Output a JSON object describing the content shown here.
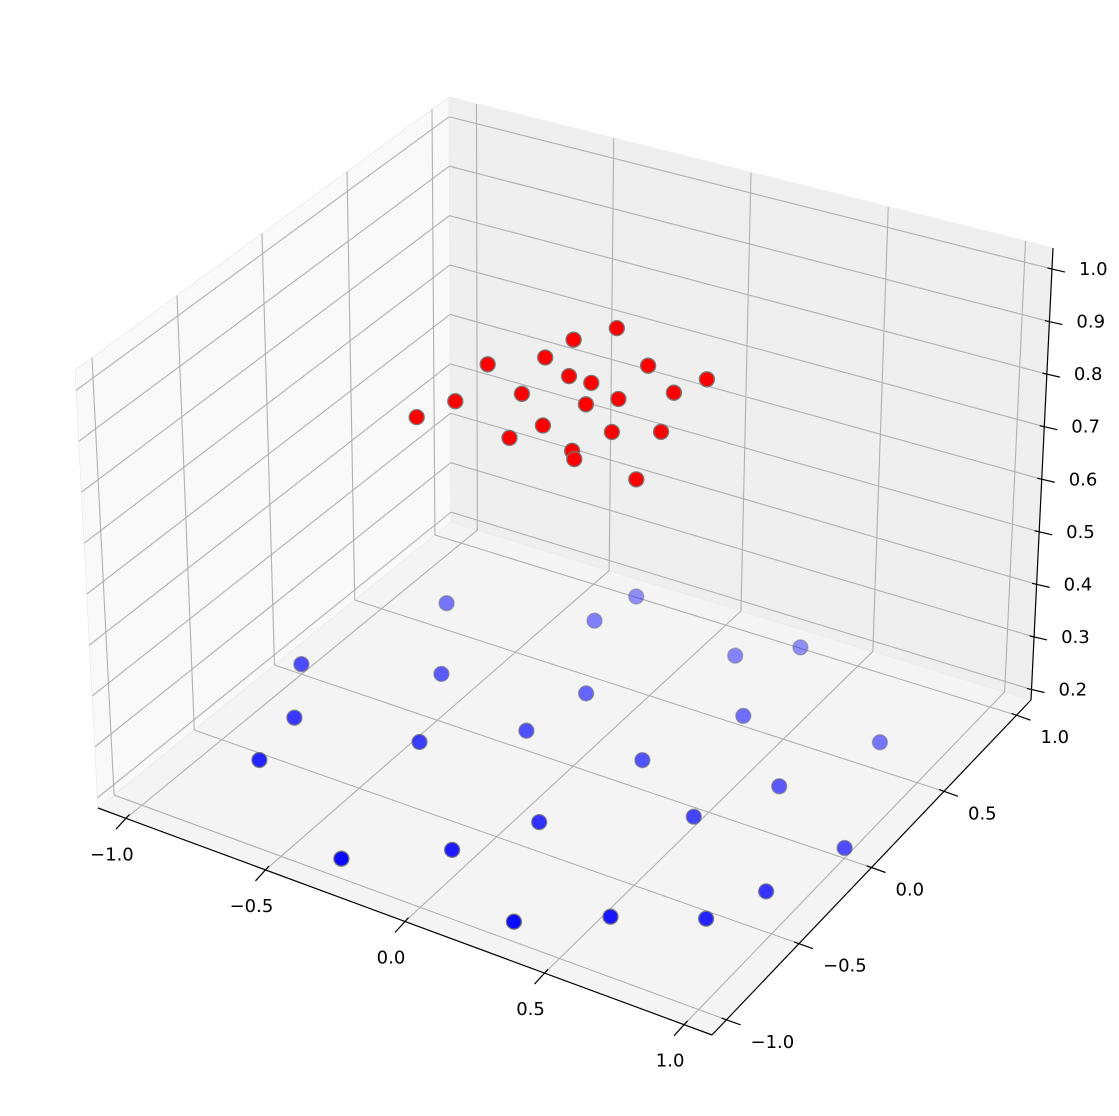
{
  "chart_data": {
    "type": "scatter3d",
    "title": "",
    "xlabel": "",
    "ylabel": "",
    "zlabel": "",
    "grid": true,
    "xlim": [
      -1.1,
      1.1
    ],
    "ylim": [
      -1.1,
      1.1
    ],
    "zlim": [
      0.18,
      1.04
    ],
    "xticks": [
      -1.0,
      -0.5,
      0.0,
      0.5,
      1.0
    ],
    "xtick_labels": [
      "−1.0",
      "−0.5",
      "0.0",
      "0.5",
      "1.0"
    ],
    "yticks": [
      -1.0,
      -0.5,
      0.0,
      0.5,
      1.0
    ],
    "ytick_labels": [
      "−1.0",
      "−0.5",
      "0.0",
      "0.5",
      "1.0"
    ],
    "zticks": [
      0.2,
      0.3,
      0.4,
      0.5,
      0.6,
      0.7,
      0.8,
      0.9,
      1.0
    ],
    "ztick_labels": [
      "0.2",
      "0.3",
      "0.4",
      "0.5",
      "0.6",
      "0.7",
      "0.8",
      "0.9",
      "1.0"
    ],
    "series": [
      {
        "color": "#0000ff",
        "points": [
          [
            1.0,
            0.0,
            0.2
          ],
          [
            0.81,
            0.59,
            0.2
          ],
          [
            0.31,
            0.95,
            0.2
          ],
          [
            -0.31,
            0.95,
            0.2
          ],
          [
            -0.81,
            0.59,
            0.2
          ],
          [
            -1.0,
            0.0,
            0.2
          ],
          [
            -0.81,
            -0.59,
            0.2
          ],
          [
            -0.31,
            -0.95,
            0.2
          ],
          [
            0.31,
            -0.95,
            0.2
          ],
          [
            0.81,
            -0.59,
            0.2
          ],
          [
            0.2,
            0.1,
            0.2
          ],
          [
            -0.15,
            0.35,
            0.2
          ],
          [
            0.1,
            -0.4,
            0.2
          ],
          [
            0.5,
            -0.1,
            0.2
          ],
          [
            -0.45,
            -0.2,
            0.2
          ],
          [
            -0.2,
            0.05,
            0.2
          ],
          [
            0.35,
            0.5,
            0.2
          ],
          [
            -0.6,
            0.2,
            0.2
          ],
          [
            0.65,
            0.2,
            0.2
          ],
          [
            -0.05,
            -0.7,
            0.2
          ],
          [
            0.15,
            0.8,
            0.2
          ],
          [
            -0.85,
            -0.3,
            0.2
          ],
          [
            0.9,
            -0.35,
            0.2
          ],
          [
            0.55,
            -0.75,
            0.2
          ],
          [
            -0.35,
            0.75,
            0.2
          ]
        ]
      },
      {
        "color": "#ff0000",
        "points": [
          [
            0.05,
            0.0,
            0.9
          ],
          [
            0.12,
            0.08,
            0.9
          ],
          [
            -0.08,
            0.12,
            0.9
          ],
          [
            -0.15,
            -0.05,
            0.9
          ],
          [
            0.0,
            -0.18,
            0.9
          ],
          [
            0.2,
            -0.1,
            0.9
          ],
          [
            -0.2,
            0.18,
            0.9
          ],
          [
            0.25,
            0.2,
            0.9
          ],
          [
            -0.3,
            -0.2,
            0.9
          ],
          [
            0.1,
            0.3,
            0.9
          ],
          [
            -0.05,
            -0.3,
            0.9
          ],
          [
            0.33,
            -0.02,
            0.9
          ],
          [
            -0.33,
            0.05,
            0.9
          ],
          [
            0.18,
            -0.3,
            0.9
          ],
          [
            -0.18,
            0.32,
            0.9
          ],
          [
            0.3,
            0.32,
            0.9
          ],
          [
            -0.35,
            -0.35,
            0.9
          ],
          [
            0.4,
            -0.3,
            0.9
          ],
          [
            -0.1,
            0.45,
            0.9
          ],
          [
            0.0,
            0.12,
            0.9
          ],
          [
            0.0,
            0.0,
            0.8
          ]
        ]
      }
    ]
  }
}
